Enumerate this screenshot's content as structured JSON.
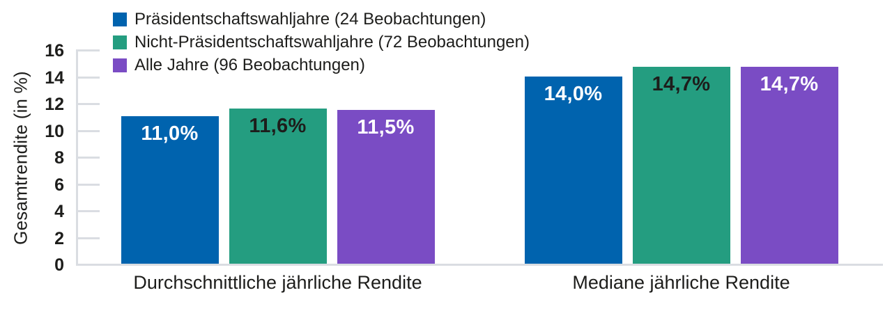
{
  "chart_data": {
    "type": "bar",
    "title": "",
    "xlabel": "",
    "ylabel": "Gesamtrendite (in %)",
    "ylim": [
      0,
      16
    ],
    "ytick_step": 2,
    "yticks": [
      0,
      2,
      4,
      6,
      8,
      10,
      12,
      14,
      16
    ],
    "grid": false,
    "legend_position": "top-left",
    "categories": [
      "Durchschnittliche jährliche Rendite",
      "Mediane jährliche Rendite"
    ],
    "series": [
      {
        "name": "Präsidentschaftswahljahre (24 Beobachtungen)",
        "color": "#0063AE",
        "label_color": "#FFFFFF",
        "values": [
          11.0,
          14.0
        ],
        "value_labels": [
          "11,0%",
          "14,0%"
        ]
      },
      {
        "name": "Nicht-Präsidentschaftswahljahre (72 Beobachtungen)",
        "color": "#249D80",
        "label_color": "#1D1D1B",
        "values": [
          11.6,
          14.7
        ],
        "value_labels": [
          "11,6%",
          "14,7%"
        ]
      },
      {
        "name": "Alle Jahre (96 Beobachtungen)",
        "color": "#7A4CC4",
        "label_color": "#FFFFFF",
        "values": [
          11.5,
          14.7
        ],
        "value_labels": [
          "11,5%",
          "14,7%"
        ]
      }
    ],
    "colors": {
      "axis": "#DADDE2",
      "text": "#1D1D1B",
      "background": "#FFFFFF"
    }
  }
}
